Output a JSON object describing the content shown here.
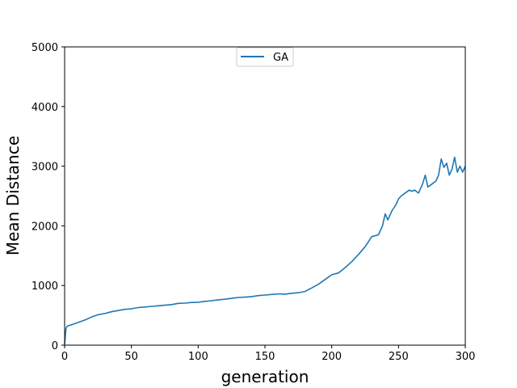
{
  "chart_data": {
    "type": "line",
    "xlabel": "generation",
    "ylabel": "Mean Distance",
    "xlim": [
      0,
      300
    ],
    "ylim": [
      0,
      5000
    ],
    "xticks": [
      0,
      50,
      100,
      150,
      200,
      250,
      300
    ],
    "yticks": [
      0,
      1000,
      2000,
      3000,
      4000,
      5000
    ],
    "grid": false,
    "legend_position": "top-center",
    "series": [
      {
        "name": "GA",
        "color": "#1f77b4",
        "x": [
          0,
          1,
          2,
          5,
          10,
          15,
          20,
          25,
          30,
          35,
          40,
          45,
          50,
          55,
          60,
          65,
          70,
          75,
          80,
          85,
          90,
          95,
          100,
          105,
          110,
          115,
          120,
          125,
          130,
          135,
          140,
          145,
          150,
          155,
          160,
          165,
          170,
          175,
          180,
          185,
          190,
          195,
          200,
          205,
          210,
          215,
          220,
          225,
          230,
          235,
          238,
          240,
          242,
          245,
          248,
          250,
          252,
          255,
          258,
          260,
          262,
          265,
          268,
          270,
          272,
          275,
          278,
          280,
          282,
          284,
          286,
          288,
          290,
          292,
          294,
          296,
          298,
          300
        ],
        "y": [
          20,
          280,
          320,
          340,
          380,
          420,
          470,
          510,
          530,
          560,
          580,
          600,
          610,
          630,
          640,
          650,
          660,
          670,
          680,
          700,
          705,
          715,
          720,
          735,
          745,
          760,
          770,
          785,
          800,
          805,
          815,
          830,
          840,
          850,
          860,
          855,
          870,
          880,
          900,
          960,
          1020,
          1100,
          1180,
          1210,
          1300,
          1400,
          1520,
          1650,
          1820,
          1850,
          2000,
          2200,
          2100,
          2250,
          2350,
          2450,
          2500,
          2550,
          2600,
          2580,
          2600,
          2550,
          2700,
          2850,
          2650,
          2700,
          2750,
          2850,
          3120,
          2980,
          3050,
          2850,
          2950,
          3150,
          2900,
          3000,
          2900,
          3000
        ]
      }
    ]
  }
}
